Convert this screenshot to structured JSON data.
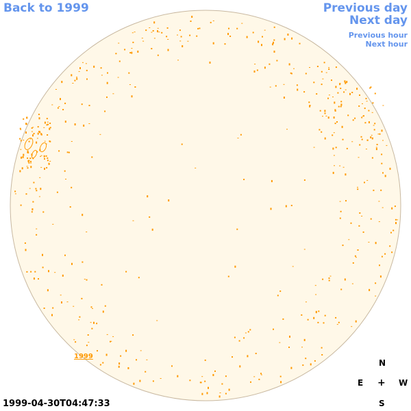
{
  "nav": {
    "back": "Back to 1999",
    "previous_day": "Previous day",
    "next_day": "Next day",
    "previous_hour": "Previous hour",
    "next_hour": "Next hour"
  },
  "timestamp": "1999-04-30T04:47:33",
  "year_label": "1999",
  "compass": {
    "north": "N",
    "east": "E",
    "center": "+",
    "west": "W",
    "south": "S"
  },
  "colors": {
    "disk_fill": "#fff8e8",
    "disk_edge": "#c8b8a0",
    "feature": "#ff9900",
    "link": "#6495ed"
  }
}
